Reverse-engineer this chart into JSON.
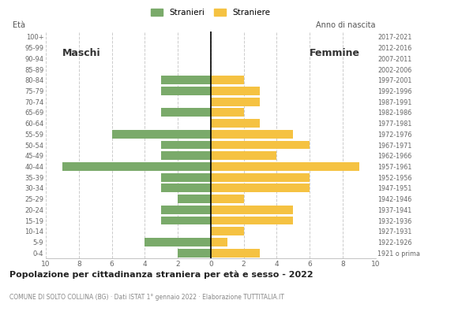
{
  "age_groups": [
    "100+",
    "95-99",
    "90-94",
    "85-89",
    "80-84",
    "75-79",
    "70-74",
    "65-69",
    "60-64",
    "55-59",
    "50-54",
    "45-49",
    "40-44",
    "35-39",
    "30-34",
    "25-29",
    "20-24",
    "15-19",
    "10-14",
    "5-9",
    "0-4"
  ],
  "birth_years": [
    "1921 o prima",
    "1922-1926",
    "1927-1931",
    "1932-1936",
    "1937-1941",
    "1942-1946",
    "1947-1951",
    "1952-1956",
    "1957-1961",
    "1962-1966",
    "1967-1971",
    "1972-1976",
    "1977-1981",
    "1982-1986",
    "1987-1991",
    "1992-1996",
    "1997-2001",
    "2002-2006",
    "2007-2011",
    "2012-2016",
    "2017-2021"
  ],
  "males": [
    0,
    0,
    0,
    0,
    3,
    3,
    0,
    3,
    0,
    6,
    3,
    3,
    9,
    3,
    3,
    2,
    3,
    3,
    0,
    4,
    2
  ],
  "females": [
    0,
    0,
    0,
    0,
    2,
    3,
    3,
    2,
    3,
    5,
    6,
    4,
    9,
    6,
    6,
    2,
    5,
    5,
    2,
    1,
    3
  ],
  "male_color": "#7aaa6a",
  "female_color": "#f5c242",
  "title": "Popolazione per cittadinanza straniera per età e sesso - 2022",
  "subtitle": "COMUNE DI SOLTO COLLINA (BG) · Dati ISTAT 1° gennaio 2022 · Elaborazione TUTTITALIA.IT",
  "legend_male": "Stranieri",
  "legend_female": "Straniere",
  "label_eta": "Età",
  "label_maschi": "Maschi",
  "label_femmine": "Femmine",
  "label_anno": "Anno di nascita",
  "xlim": 10,
  "background_color": "#ffffff",
  "grid_color": "#cccccc",
  "bar_height": 0.8
}
